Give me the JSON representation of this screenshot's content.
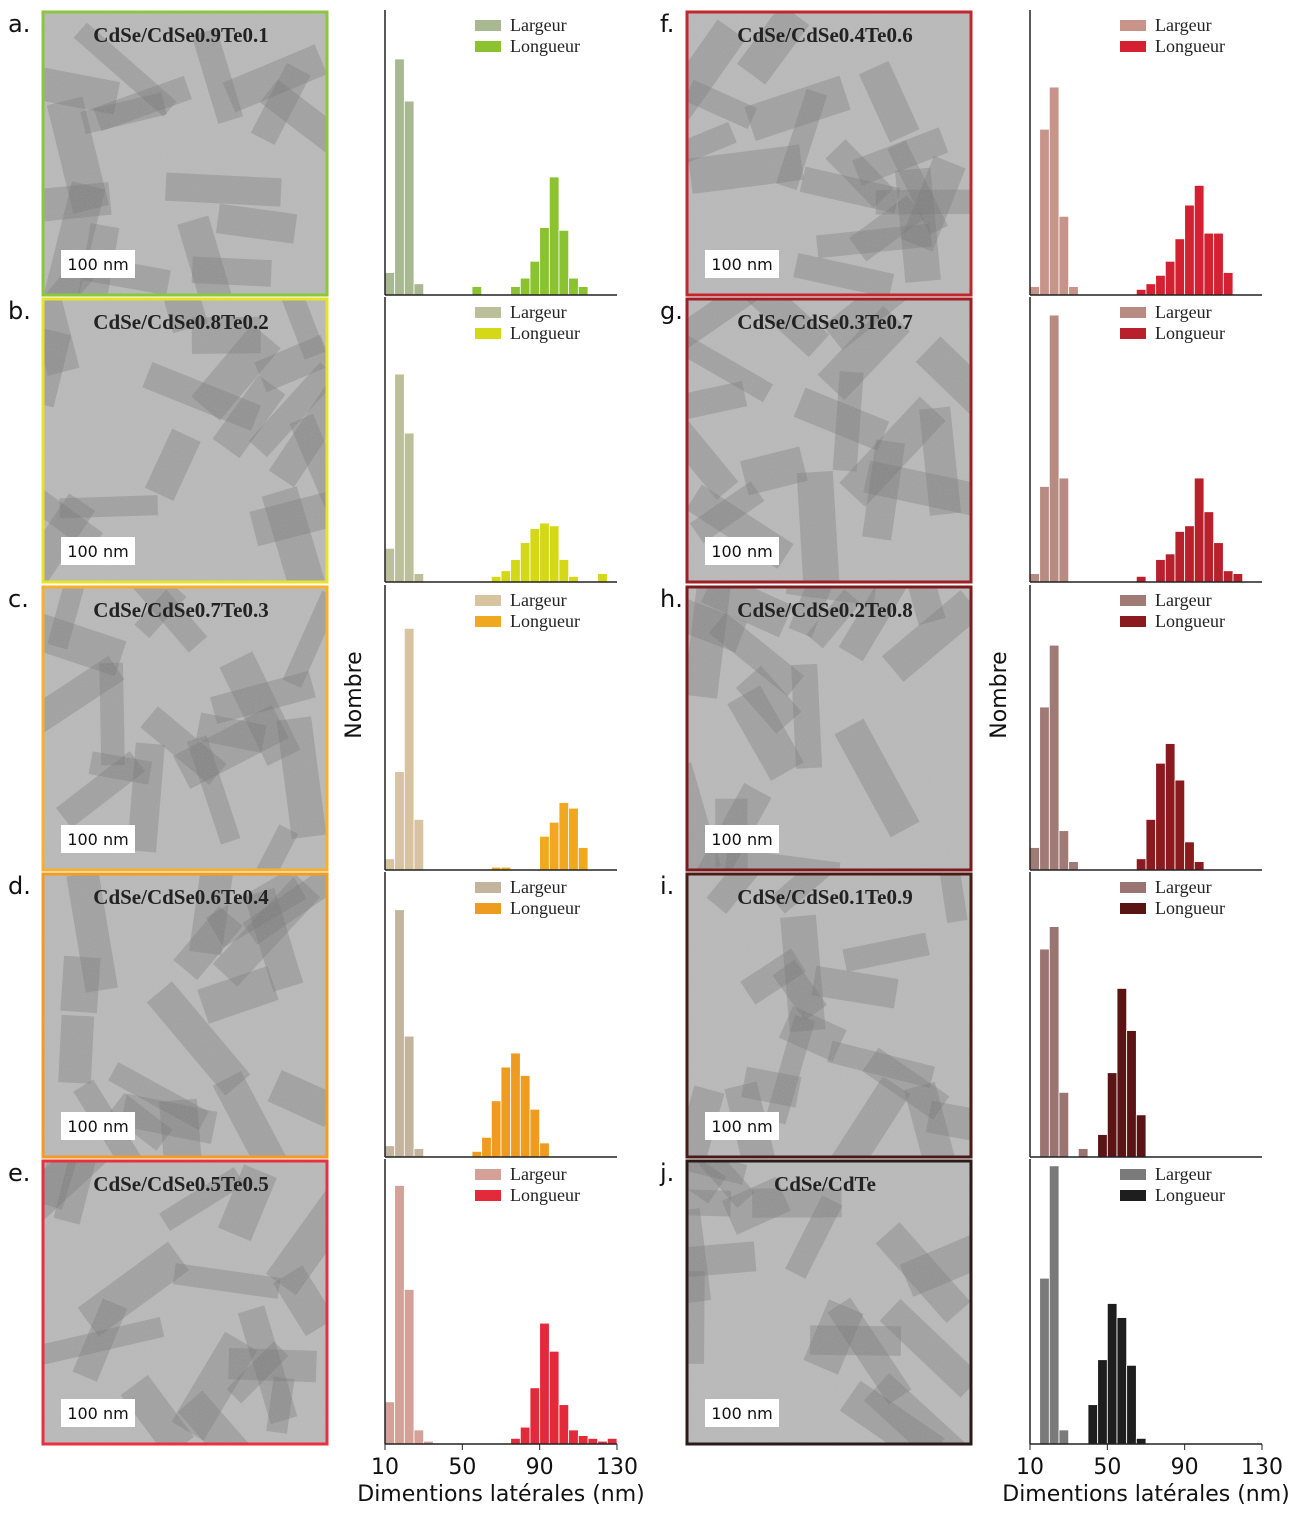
{
  "panels": [
    {
      "label": "a.",
      "title": "CdSe/CdSe0.9Te0.1",
      "scale_bar": "100 nm",
      "frame": "#8cc63f"
    },
    {
      "label": "b.",
      "title": "CdSe/CdSe0.8Te0.2",
      "scale_bar": "100 nm",
      "frame": "#e6e32a"
    },
    {
      "label": "c.",
      "title": "CdSe/CdSe0.7Te0.3",
      "scale_bar": "100 nm",
      "frame": "#f6b02a"
    },
    {
      "label": "d.",
      "title": "CdSe/CdSe0.6Te0.4",
      "scale_bar": "100 nm",
      "frame": "#f29c24"
    },
    {
      "label": "e.",
      "title": "CdSe/CdSe0.5Te0.5",
      "scale_bar": "100 nm",
      "frame": "#e8303f"
    },
    {
      "label": "f.",
      "title": "CdSe/CdSe0.4Te0.6",
      "scale_bar": "100 nm",
      "frame": "#c1272d"
    },
    {
      "label": "g.",
      "title": "CdSe/CdSe0.3Te0.7",
      "scale_bar": "100 nm",
      "frame": "#9e1f24"
    },
    {
      "label": "h.",
      "title": "CdSe/CdSe0.2Te0.8",
      "scale_bar": "100 nm",
      "frame": "#7d1a1c"
    },
    {
      "label": "i.",
      "title": "CdSe/CdSe0.1Te0.9",
      "scale_bar": "100 nm",
      "frame": "#4a1a16"
    },
    {
      "label": "j.",
      "title": "CdSe/CdTe",
      "scale_bar": "100 nm",
      "frame": "#2b1b17"
    }
  ],
  "chart_data": [
    {
      "type": "histogram",
      "xlim": [
        10,
        130
      ],
      "ylim": [
        0,
        100
      ],
      "bins": [
        10,
        15,
        20,
        25,
        30,
        35,
        40,
        45,
        50,
        55,
        60,
        65,
        70,
        75,
        80,
        85,
        90,
        95,
        100,
        105,
        110,
        115,
        120,
        125,
        130
      ],
      "series": [
        {
          "name": "Largeur",
          "color": "#a8b890",
          "values": [
            8,
            84,
            69,
            4,
            0,
            0,
            0,
            0,
            0,
            0,
            0,
            0,
            0,
            0,
            0,
            0,
            0,
            0,
            0,
            0,
            0,
            0,
            0,
            0
          ]
        },
        {
          "name": "Longueur",
          "color": "#8ac230",
          "values": [
            0,
            0,
            0,
            0,
            0,
            0,
            0,
            0,
            0,
            3,
            0,
            0,
            0,
            3,
            6,
            12,
            24,
            42,
            23,
            6,
            3,
            0,
            0,
            0
          ]
        }
      ]
    },
    {
      "type": "histogram",
      "xlim": [
        10,
        130
      ],
      "ylim": [
        0,
        100
      ],
      "bins": [
        10,
        15,
        20,
        25,
        30,
        35,
        40,
        45,
        50,
        55,
        60,
        65,
        70,
        75,
        80,
        85,
        90,
        95,
        100,
        105,
        110,
        115,
        120,
        125,
        130
      ],
      "series": [
        {
          "name": "Largeur",
          "color": "#bcc09a",
          "values": [
            12,
            74,
            53,
            3,
            0,
            0,
            0,
            0,
            0,
            0,
            0,
            0,
            0,
            0,
            0,
            0,
            0,
            0,
            0,
            0,
            0,
            0,
            0,
            0
          ]
        },
        {
          "name": "Longueur",
          "color": "#d4d817",
          "values": [
            0,
            0,
            0,
            0,
            0,
            0,
            0,
            0,
            0,
            0,
            0,
            2,
            4,
            8,
            14,
            19,
            21,
            20,
            8,
            2,
            0,
            0,
            3,
            0
          ]
        }
      ]
    },
    {
      "type": "histogram",
      "xlim": [
        10,
        130
      ],
      "ylim": [
        0,
        100
      ],
      "ylabel": "Nombre",
      "bins": [
        10,
        15,
        20,
        25,
        30,
        35,
        40,
        45,
        50,
        55,
        60,
        65,
        70,
        75,
        80,
        85,
        90,
        95,
        100,
        105,
        110,
        115,
        120,
        125,
        130
      ],
      "series": [
        {
          "name": "Largeur",
          "color": "#d8c3a0",
          "values": [
            4,
            35,
            86,
            18,
            0,
            0,
            0,
            0,
            0,
            0,
            0,
            0,
            0,
            0,
            0,
            0,
            0,
            0,
            0,
            0,
            0,
            0,
            0,
            0
          ]
        },
        {
          "name": "Longueur",
          "color": "#f0a820",
          "values": [
            0,
            0,
            0,
            0,
            0,
            0,
            0,
            0,
            0,
            0,
            0,
            1,
            1,
            0,
            0,
            0,
            12,
            17,
            24,
            22,
            8,
            0,
            0,
            0
          ]
        }
      ]
    },
    {
      "type": "histogram",
      "xlim": [
        10,
        130
      ],
      "ylim": [
        0,
        100
      ],
      "bins": [
        10,
        15,
        20,
        25,
        30,
        35,
        40,
        45,
        50,
        55,
        60,
        65,
        70,
        75,
        80,
        85,
        90,
        95,
        100,
        105,
        110,
        115,
        120,
        125,
        130
      ],
      "series": [
        {
          "name": "Largeur",
          "color": "#c4b39d",
          "values": [
            4,
            88,
            43,
            3,
            0,
            0,
            0,
            0,
            0,
            0,
            0,
            0,
            0,
            0,
            0,
            0,
            0,
            0,
            0,
            0,
            0,
            0,
            0,
            0
          ]
        },
        {
          "name": "Longueur",
          "color": "#ee9b22",
          "values": [
            0,
            0,
            0,
            0,
            0,
            0,
            0,
            0,
            0,
            2,
            7,
            20,
            32,
            37,
            29,
            17,
            5,
            0,
            0,
            0,
            0,
            0,
            0,
            0
          ]
        }
      ]
    },
    {
      "type": "histogram",
      "xlim": [
        10,
        130
      ],
      "ylim": [
        0,
        100
      ],
      "xticks": [
        10,
        50,
        90,
        130
      ],
      "xlabel": "Dimentions latérales (nm)",
      "bins": [
        10,
        15,
        20,
        25,
        30,
        35,
        40,
        45,
        50,
        55,
        60,
        65,
        70,
        75,
        80,
        85,
        90,
        95,
        100,
        105,
        110,
        115,
        120,
        125,
        130
      ],
      "series": [
        {
          "name": "Largeur",
          "color": "#d4a098",
          "values": [
            15,
            92,
            55,
            5,
            1,
            0,
            0,
            0,
            0,
            0,
            0,
            0,
            0,
            0,
            0,
            0,
            0,
            0,
            0,
            0,
            0,
            0,
            0,
            0
          ]
        },
        {
          "name": "Longueur",
          "color": "#e32a3a",
          "values": [
            0,
            0,
            0,
            0,
            0,
            0,
            0,
            0,
            0,
            0,
            0,
            0,
            0,
            2,
            6,
            20,
            43,
            33,
            14,
            5,
            3,
            2,
            1,
            2
          ]
        }
      ]
    },
    {
      "type": "histogram",
      "xlim": [
        10,
        130
      ],
      "ylim": [
        0,
        100
      ],
      "bins": [
        10,
        15,
        20,
        25,
        30,
        35,
        40,
        45,
        50,
        55,
        60,
        65,
        70,
        75,
        80,
        85,
        90,
        95,
        100,
        105,
        110,
        115,
        120,
        125,
        130
      ],
      "series": [
        {
          "name": "Largeur",
          "color": "#c8948a",
          "values": [
            3,
            59,
            74,
            28,
            3,
            0,
            0,
            0,
            0,
            0,
            0,
            0,
            0,
            0,
            0,
            0,
            0,
            0,
            0,
            0,
            0,
            0,
            0,
            0
          ]
        },
        {
          "name": "Longueur",
          "color": "#d42030",
          "values": [
            0,
            0,
            0,
            0,
            0,
            0,
            0,
            0,
            0,
            0,
            0,
            2,
            4,
            7,
            12,
            20,
            32,
            39,
            22,
            22,
            8,
            0,
            0,
            0
          ]
        }
      ]
    },
    {
      "type": "histogram",
      "xlim": [
        10,
        130
      ],
      "ylim": [
        0,
        100
      ],
      "bins": [
        10,
        15,
        20,
        25,
        30,
        35,
        40,
        45,
        50,
        55,
        60,
        65,
        70,
        75,
        80,
        85,
        90,
        95,
        100,
        105,
        110,
        115,
        120,
        125,
        130
      ],
      "series": [
        {
          "name": "Largeur",
          "color": "#b78a82",
          "values": [
            3,
            34,
            95,
            37,
            0,
            0,
            0,
            0,
            0,
            0,
            0,
            0,
            0,
            0,
            0,
            0,
            0,
            0,
            0,
            0,
            0,
            0,
            0,
            0
          ]
        },
        {
          "name": "Longueur",
          "color": "#b8202c",
          "values": [
            0,
            0,
            0,
            0,
            0,
            0,
            0,
            0,
            0,
            0,
            0,
            2,
            0,
            8,
            10,
            18,
            20,
            37,
            25,
            14,
            4,
            3,
            0,
            0
          ]
        }
      ]
    },
    {
      "type": "histogram",
      "xlim": [
        10,
        130
      ],
      "ylim": [
        0,
        100
      ],
      "ylabel": "Nombre",
      "bins": [
        10,
        15,
        20,
        25,
        30,
        35,
        40,
        45,
        50,
        55,
        60,
        65,
        70,
        75,
        80,
        85,
        90,
        95,
        100,
        105,
        110,
        115,
        120,
        125,
        130
      ],
      "series": [
        {
          "name": "Largeur",
          "color": "#a07a74",
          "values": [
            8,
            58,
            80,
            14,
            3,
            0,
            0,
            0,
            0,
            0,
            0,
            0,
            0,
            0,
            0,
            0,
            0,
            0,
            0,
            0,
            0,
            0,
            0,
            0
          ]
        },
        {
          "name": "Longueur",
          "color": "#8a1a1e",
          "values": [
            0,
            0,
            0,
            0,
            0,
            0,
            0,
            0,
            0,
            0,
            0,
            4,
            18,
            38,
            45,
            32,
            10,
            3,
            0,
            0,
            0,
            0,
            0,
            0
          ]
        }
      ]
    },
    {
      "type": "histogram",
      "xlim": [
        10,
        130
      ],
      "ylim": [
        0,
        100
      ],
      "bins": [
        10,
        15,
        20,
        25,
        30,
        35,
        40,
        45,
        50,
        55,
        60,
        65,
        70,
        75,
        80,
        85,
        90,
        95,
        100,
        105,
        110,
        115,
        120,
        125,
        130
      ],
      "series": [
        {
          "name": "Largeur",
          "color": "#9a7470",
          "values": [
            0,
            74,
            82,
            23,
            0,
            3,
            0,
            0,
            0,
            0,
            0,
            0,
            0,
            0,
            0,
            0,
            0,
            0,
            0,
            0,
            0,
            0,
            0,
            0
          ]
        },
        {
          "name": "Longueur",
          "color": "#5a1414",
          "values": [
            0,
            0,
            0,
            0,
            0,
            0,
            0,
            8,
            30,
            60,
            45,
            15,
            0,
            0,
            0,
            0,
            0,
            0,
            0,
            0,
            0,
            0,
            0,
            0
          ]
        }
      ]
    },
    {
      "type": "histogram",
      "xlim": [
        10,
        130
      ],
      "ylim": [
        0,
        100
      ],
      "xticks": [
        10,
        50,
        90,
        130
      ],
      "xlabel": "Dimentions latérales (nm)",
      "bins": [
        10,
        15,
        20,
        25,
        30,
        35,
        40,
        45,
        50,
        55,
        60,
        65,
        70,
        75,
        80,
        85,
        90,
        95,
        100,
        105,
        110,
        115,
        120,
        125,
        130
      ],
      "series": [
        {
          "name": "Largeur",
          "color": "#7a7a7a",
          "values": [
            0,
            59,
            99,
            5,
            0,
            0,
            0,
            0,
            0,
            0,
            0,
            0,
            0,
            0,
            0,
            0,
            0,
            0,
            0,
            0,
            0,
            0,
            0,
            0
          ]
        },
        {
          "name": "Longueur",
          "color": "#1e1e1e",
          "values": [
            0,
            0,
            0,
            0,
            0,
            0,
            14,
            30,
            50,
            45,
            28,
            2,
            0,
            0,
            0,
            0,
            0,
            0,
            0,
            0,
            0,
            0,
            0,
            0
          ]
        }
      ]
    }
  ]
}
